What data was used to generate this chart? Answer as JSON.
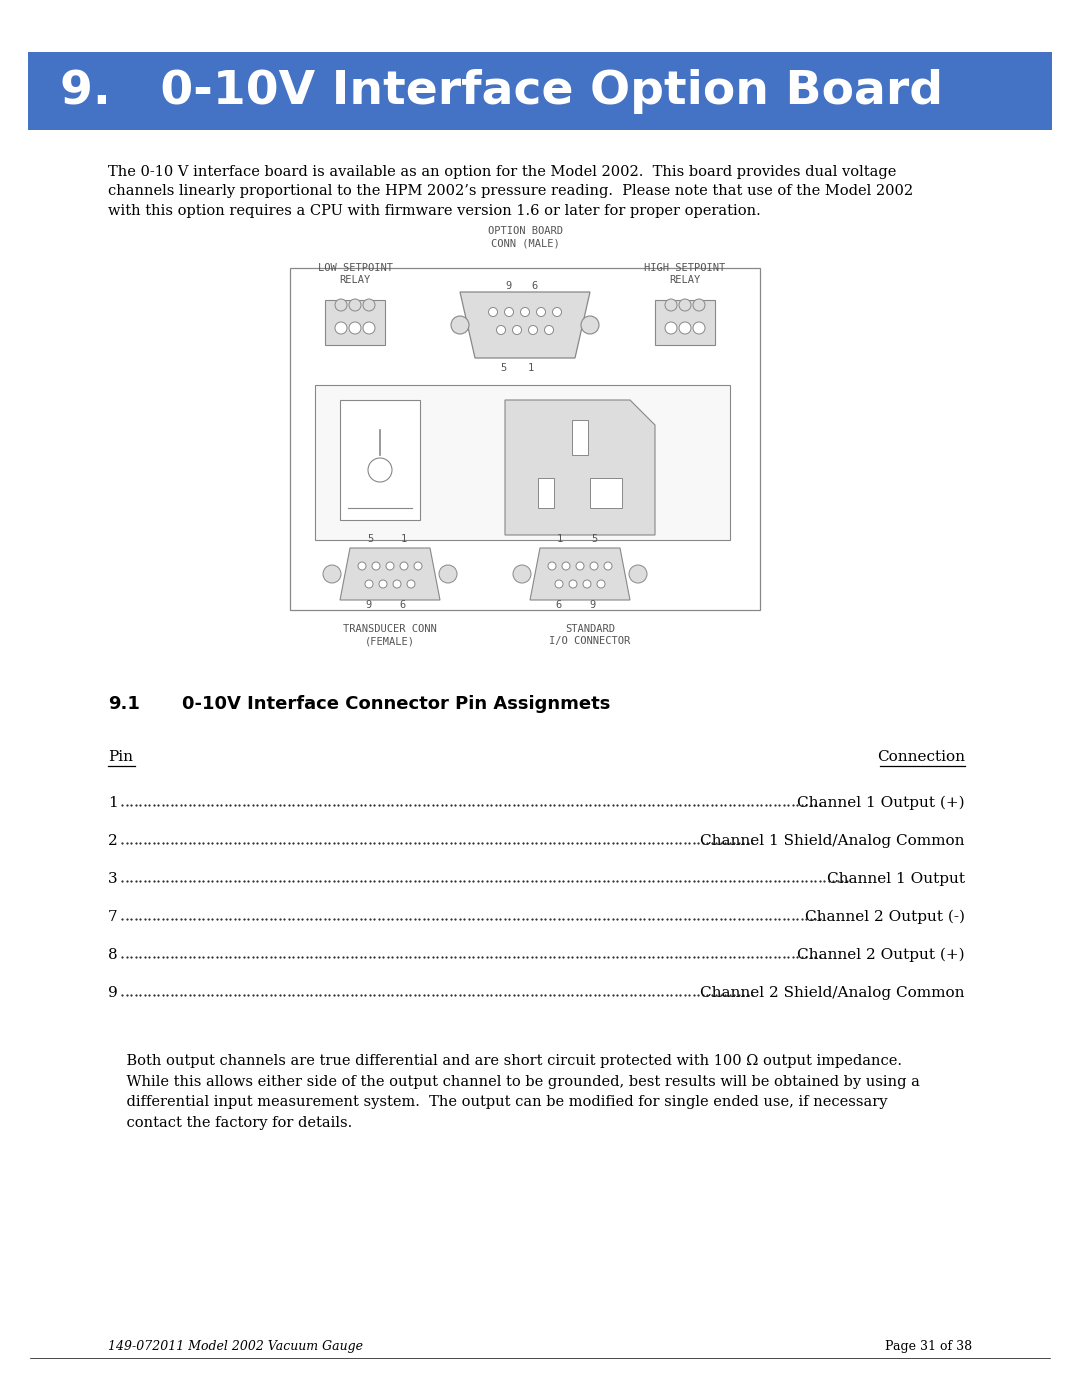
{
  "title_number": "9.",
  "title_text": "   0-10V Interface Option Board",
  "title_bg_color": "#4472C4",
  "title_text_color": "#FFFFFF",
  "title_fontsize": 34,
  "page_bg_color": "#FFFFFF",
  "body_text_color": "#000000",
  "body_fontsize": 10.5,
  "intro_paragraph": "The 0-10 V interface board is available as an option for the Model 2002.  This board provides dual voltage\nchannels linearly proportional to the HPM 2002’s pressure reading.  Please note that use of the Model 2002\nwith this option requires a CPU with firmware version 1.6 or later for proper operation.",
  "section_number": "9.1",
  "section_title": "0-10V Interface Connector Pin Assignmets",
  "section_fontsize": 13,
  "pin_header": "Pin",
  "connection_header": "Connection",
  "pin_rows": [
    {
      "pin": "1",
      "connection": "Channel 1 Output (+)"
    },
    {
      "pin": "2",
      "connection": "Channel 1 Shield/Analog Common"
    },
    {
      "pin": "3",
      "connection": "Channel 1 Output"
    },
    {
      "pin": "7",
      "connection": "Channel 2 Output (-)"
    },
    {
      "pin": "8",
      "connection": "Channel 2 Output (+)"
    },
    {
      "pin": "9",
      "connection": "Channel 2 Shield/Analog Common"
    }
  ],
  "closing_paragraph": "    Both output channels are true differential and are short circuit protected with 100 Ω output impedance.\n    While this allows either side of the output channel to be grounded, best results will be obtained by using a\n    differential input measurement system.  The output can be modified for single ended use, if necessary\n    contact the factory for details.",
  "footer_left": "149-072011 Model 2002 Vacuum Gauge",
  "footer_right": "Page 31 of 38",
  "diag_color": "#AAAAAA",
  "diag_edge_color": "#888888",
  "diag_light": "#DDDDDD"
}
